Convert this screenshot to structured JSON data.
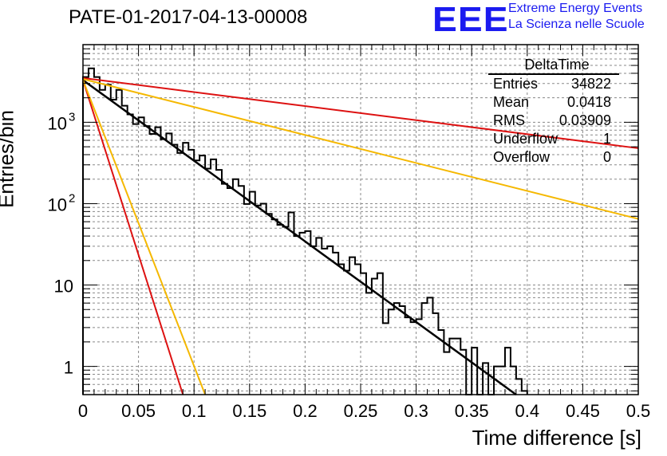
{
  "header": {
    "title": "PATE-01-2017-04-13-00008",
    "logo_text": "EEE",
    "brand_line1": "Extreme Energy Events",
    "brand_line2": "La Scienza nelle Scuole"
  },
  "stats": {
    "name": "DeltaTime",
    "rows": [
      {
        "label": "Entries",
        "value": "34822"
      },
      {
        "label": "Mean",
        "value": "0.0418"
      },
      {
        "label": "RMS",
        "value": "0.03909"
      },
      {
        "label": "Underflow",
        "value": "1"
      },
      {
        "label": "Overflow",
        "value": "0"
      }
    ]
  },
  "colors": {
    "histogram": "#000000",
    "fit": "#000000",
    "red_lines": "#dd1111",
    "yellow_lines": "#f5b800",
    "grid": "#888888",
    "brand": "#1b1bf0"
  },
  "chart_data": {
    "type": "line",
    "title": "PATE-01-2017-04-13-00008",
    "xlabel": "Time difference [s]",
    "ylabel": "Entries/bin",
    "xlim": [
      0,
      0.5
    ],
    "ylim": [
      0.45,
      9000
    ],
    "yscale": "log",
    "grid": true,
    "x_ticks": [
      "0",
      "0.05",
      "0.1",
      "0.15",
      "0.2",
      "0.25",
      "0.3",
      "0.35",
      "0.4",
      "0.45",
      "0.5"
    ],
    "y_ticks": [
      {
        "value": 1,
        "label": "1"
      },
      {
        "value": 10,
        "label": "10"
      },
      {
        "value": 100,
        "label": "10",
        "exp": "2"
      },
      {
        "value": 1000,
        "label": "10",
        "exp": "3"
      }
    ],
    "histogram": {
      "bin_width": 0.005,
      "counts": [
        3600,
        4600,
        3600,
        2500,
        2900,
        1900,
        2500,
        1600,
        1250,
        950,
        1150,
        900,
        720,
        870,
        620,
        730,
        530,
        420,
        560,
        460,
        340,
        390,
        270,
        350,
        260,
        175,
        155,
        200,
        165,
        99,
        140,
        95,
        100,
        75,
        64,
        55,
        52,
        78,
        40,
        44,
        46,
        30,
        38,
        28,
        30,
        25,
        18,
        15,
        22,
        18,
        14,
        8,
        12,
        14,
        3.4,
        5,
        6,
        5.5,
        4,
        3.5,
        3.8,
        6,
        7,
        4.5,
        2.8,
        1.5,
        2.2,
        2.2,
        1.6,
        0.4,
        1.7,
        0.3,
        1.1,
        0.4,
        1.0,
        1.0,
        1.7,
        1.0,
        0.7,
        0.5
      ]
    },
    "series": [
      {
        "x": [
          0,
          0.39
        ],
        "y": [
          3300,
          0.45
        ],
        "color": "#000000"
      },
      {
        "x": [
          0,
          0.5
        ],
        "y": [
          3500,
          480
        ],
        "color": "#dd1111"
      },
      {
        "x": [
          0,
          0.09
        ],
        "y": [
          3300,
          0.45
        ],
        "color": "#dd1111"
      },
      {
        "x": [
          0,
          0.5
        ],
        "y": [
          3400,
          65
        ],
        "color": "#f5b800"
      },
      {
        "x": [
          0,
          0.11
        ],
        "y": [
          3300,
          0.45
        ],
        "color": "#f5b800"
      }
    ]
  }
}
